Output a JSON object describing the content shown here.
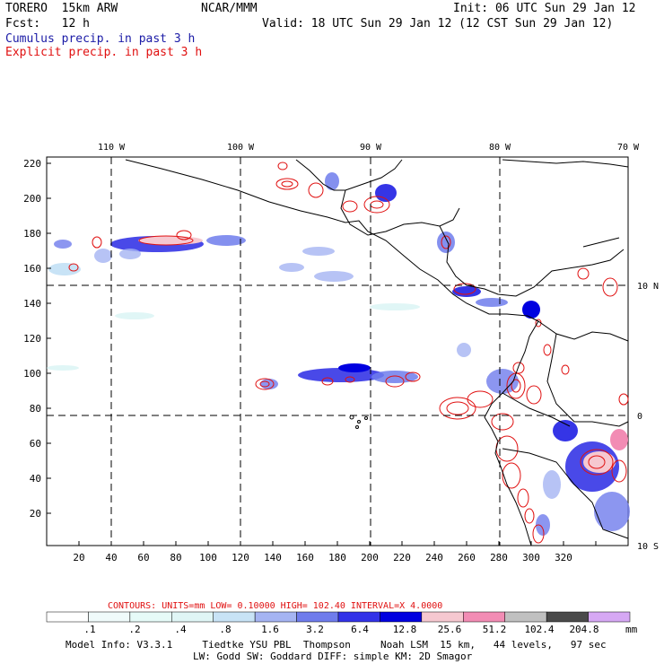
{
  "header": {
    "model": "TORERO  15km ARW",
    "org": "NCAR/MMM",
    "init": "Init: 06 UTC Sun 29 Jan 12",
    "fcst": "Fcst:   12 h",
    "valid": "Valid: 18 UTC Sun 29 Jan 12 (12 CST Sun 29 Jan 12)",
    "field1": "Cumulus precip. in past 3 h",
    "field2": "Explicit precip. in past 3 h"
  },
  "map": {
    "top_lon_labels": [
      "110 W",
      "100 W",
      "90 W",
      "80 W",
      "70 W"
    ],
    "right_lat_labels": [
      "10 N",
      "0",
      "10 S"
    ],
    "y_ticks": [
      "220",
      "200",
      "180",
      "160",
      "140",
      "120",
      "100",
      "80",
      "60",
      "40",
      "20"
    ],
    "x_ticks": [
      "20",
      "40",
      "60",
      "80",
      "100",
      "120",
      "140",
      "160",
      "180",
      "200",
      "220",
      "240",
      "260",
      "280",
      "300",
      "320"
    ]
  },
  "contours_line": {
    "label": "CONTOURS:  UNITS=mm  LOW= 0.10000     HIGH= 102.40     INTERVAL=X  4.0000"
  },
  "colorbar": {
    "labels": [
      ".1",
      ".2",
      ".4",
      ".8",
      "1.6",
      "3.2",
      "6.4",
      "12.8",
      "25.6",
      "51.2",
      "102.4",
      "204.8"
    ],
    "unit": "mm",
    "colors": [
      "#ffffff",
      "#f0fbfb",
      "#e6fbf8",
      "#e0f6f6",
      "#c8e3f6",
      "#a5b4f2",
      "#6f7cec",
      "#3232e8",
      "#0000e0",
      "#f6c8d0",
      "#f28cb4",
      "#c0c0c0",
      "#4a4a4a",
      "#d6a8f4"
    ]
  },
  "footer": {
    "line1": "Model Info: V3.3.1     Tiedtke YSU PBL  Thompson     Noah LSM  15 km,   44 levels,   97 sec",
    "line2": "LW: Godd SW: Goddard DIFF: simple KM: 2D Smagor"
  }
}
